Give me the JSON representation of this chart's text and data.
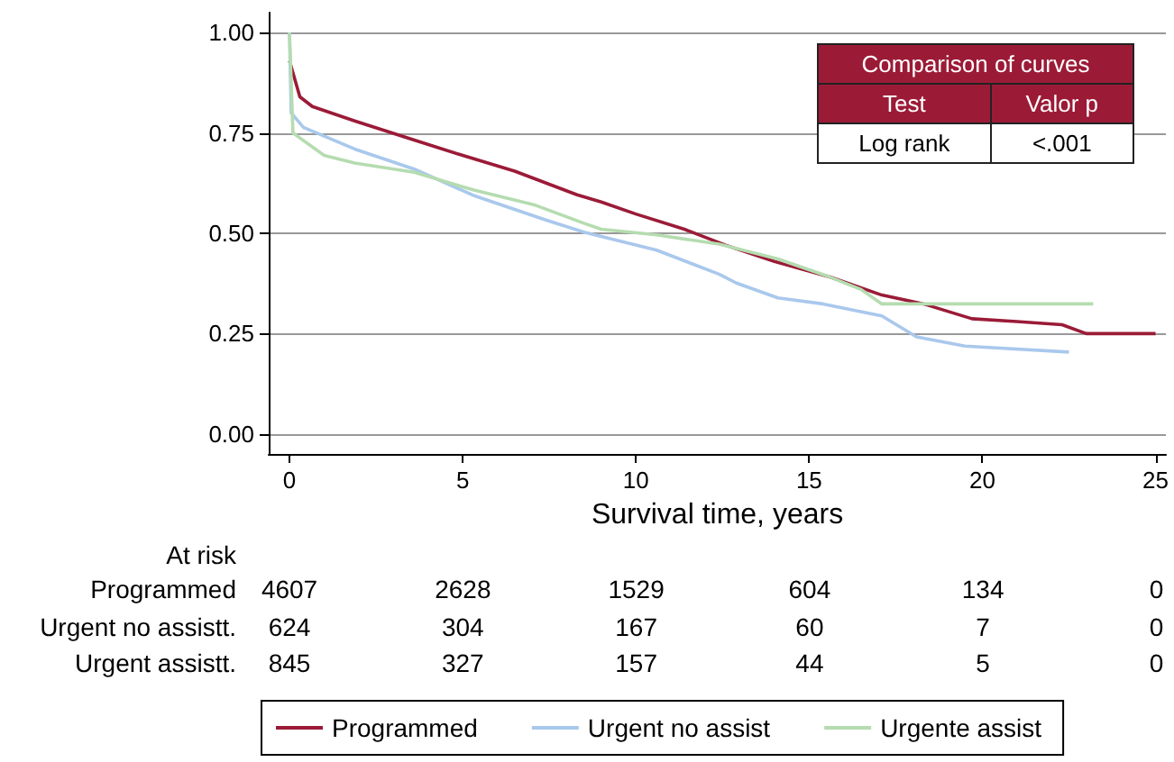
{
  "chart_data": {
    "type": "line",
    "xlabel": "Survival time, years",
    "xlim": [
      -0.6,
      25.3
    ],
    "xticks": [
      0,
      5,
      10,
      15,
      20,
      25
    ],
    "ylim": [
      -0.05,
      1.05
    ],
    "yticks": [
      {
        "value": 0,
        "label": "0.00"
      },
      {
        "value": 0.25,
        "label": "0.25"
      },
      {
        "value": 0.5,
        "label": "0.50"
      },
      {
        "value": 0.75,
        "label": "0.75"
      },
      {
        "value": 1,
        "label": "1.00"
      }
    ],
    "grid": "y",
    "legend": "bottom",
    "series": [
      {
        "name": "Programmed",
        "color": "#9b1b37",
        "x": [
          0,
          0.3,
          0.66,
          1.88,
          3.5,
          5,
          6.5,
          8.3,
          9,
          10,
          11.4,
          12.6,
          14,
          15.6,
          17.1,
          18.3,
          19.7,
          21,
          22.3,
          23,
          25
        ],
        "values": [
          0.93,
          0.84,
          0.816,
          0.78,
          0.735,
          0.694,
          0.655,
          0.596,
          0.578,
          0.548,
          0.51,
          0.47,
          0.43,
          0.391,
          0.346,
          0.324,
          0.287,
          0.28,
          0.272,
          0.25,
          0.25
        ]
      },
      {
        "name": "Urgent no assist",
        "color": "#a9c8ec",
        "x": [
          0,
          0.05,
          0.4,
          1.88,
          3.6,
          5.35,
          7.4,
          8.5,
          10.6,
          12.4,
          12.9,
          14.1,
          15.4,
          17.1,
          18.1,
          19.5,
          22.5
        ],
        "values": [
          1,
          0.8,
          0.764,
          0.71,
          0.66,
          0.593,
          0.533,
          0.503,
          0.458,
          0.398,
          0.376,
          0.339,
          0.324,
          0.294,
          0.242,
          0.219,
          0.204
        ]
      },
      {
        "name": "Urgente assist",
        "color": "#b5dcb0",
        "x": [
          0,
          0.1,
          1,
          1.88,
          3.6,
          5.35,
          7.1,
          8.5,
          9,
          10.6,
          12.4,
          14.1,
          15.6,
          16.5,
          17.1,
          23.2
        ],
        "values": [
          1,
          0.75,
          0.694,
          0.675,
          0.652,
          0.607,
          0.57,
          0.525,
          0.51,
          0.496,
          0.473,
          0.436,
          0.391,
          0.36,
          0.324,
          0.324
        ]
      }
    ],
    "annotations": [
      "Comparison of curves",
      "Test",
      "Valor p",
      "Log rank",
      "<.001",
      "At risk",
      "Programmed",
      "4607",
      "2628",
      "1529",
      "604",
      "134",
      "0",
      "Urgent no assistt.",
      "624",
      "304",
      "167",
      "60",
      "7",
      "0",
      "Urgent assistt.",
      "845",
      "327",
      "157",
      "44",
      "5",
      "0"
    ]
  }
}
